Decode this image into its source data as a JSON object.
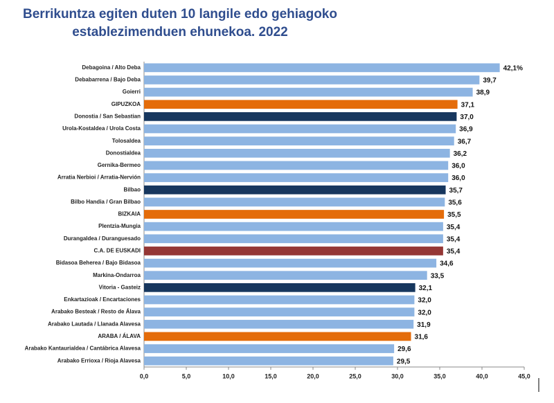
{
  "chart_data": {
    "type": "bar",
    "orientation": "horizontal",
    "title": "Berrikuntza egiten duten 10 langile edo gehiagoko establezimenduen ehunekoa. 2022",
    "categories": [
      "Debagoina / Alto Deba",
      "Debabarrena / Bajo Deba",
      "Goierri",
      "GIPUZKOA",
      "Donostia / San Sebastian",
      "Urola-Kostaldea / Urola Costa",
      "Tolosaldea",
      "Donostialdea",
      "Gernika-Bermeo",
      "Arratia Nerbioi / Arratia-Nervión",
      "Bilbao",
      "Bilbo Handia / Gran Bilbao",
      "BIZKAIA",
      "Plentzia-Mungia",
      "Durangaldea / Duranguesado",
      "C.A. DE EUSKADI",
      "Bidasoa Beherea / Bajo Bidasoa",
      "Markina-Ondarroa",
      "Vitoria - Gasteiz",
      "Enkartazioak / Encartaciones",
      "Arabako Besteak / Resto de Álava",
      "Arabako Lautada / Llanada Alavesa",
      "ARABA / ÁLAVA",
      "Arabako Kantaurialdea / Cantábrica Alavesa",
      "Arabako Errioxa / Rioja Alavesa"
    ],
    "values": [
      42.1,
      39.7,
      38.9,
      37.1,
      37.0,
      36.9,
      36.7,
      36.2,
      36.0,
      36.0,
      35.7,
      35.6,
      35.5,
      35.4,
      35.4,
      35.4,
      34.6,
      33.5,
      32.1,
      32.0,
      32.0,
      31.9,
      31.6,
      29.6,
      29.5
    ],
    "value_labels": [
      "42,1%",
      "39,7",
      "38,9",
      "37,1",
      "37,0",
      "36,9",
      "36,7",
      "36,2",
      "36,0",
      "36,0",
      "35,7",
      "35,6",
      "35,5",
      "35,4",
      "35,4",
      "35,4",
      "34,6",
      "33,5",
      "32,1",
      "32,0",
      "32,0",
      "31,9",
      "31,6",
      "29,6",
      "29,5"
    ],
    "colors": [
      "#8db4e2",
      "#8db4e2",
      "#8db4e2",
      "#e46c0a",
      "#17375e",
      "#8db4e2",
      "#8db4e2",
      "#8db4e2",
      "#8db4e2",
      "#8db4e2",
      "#17375e",
      "#8db4e2",
      "#e46c0a",
      "#8db4e2",
      "#8db4e2",
      "#953735",
      "#8db4e2",
      "#8db4e2",
      "#17375e",
      "#8db4e2",
      "#8db4e2",
      "#8db4e2",
      "#e46c0a",
      "#8db4e2",
      "#8db4e2"
    ],
    "xlim": [
      0,
      45
    ],
    "xticks": [
      {
        "value": 0,
        "label": "0,0"
      },
      {
        "value": 5,
        "label": "5,0"
      },
      {
        "value": 10,
        "label": "10,0"
      },
      {
        "value": 15,
        "label": "15,0"
      },
      {
        "value": 20,
        "label": "20,0"
      },
      {
        "value": 25,
        "label": "25,0"
      },
      {
        "value": 30,
        "label": "30,0"
      },
      {
        "value": 35,
        "label": "35,0"
      },
      {
        "value": 40,
        "label": "40,0"
      },
      {
        "value": 45,
        "label": "45,0"
      }
    ],
    "grid": false
  }
}
